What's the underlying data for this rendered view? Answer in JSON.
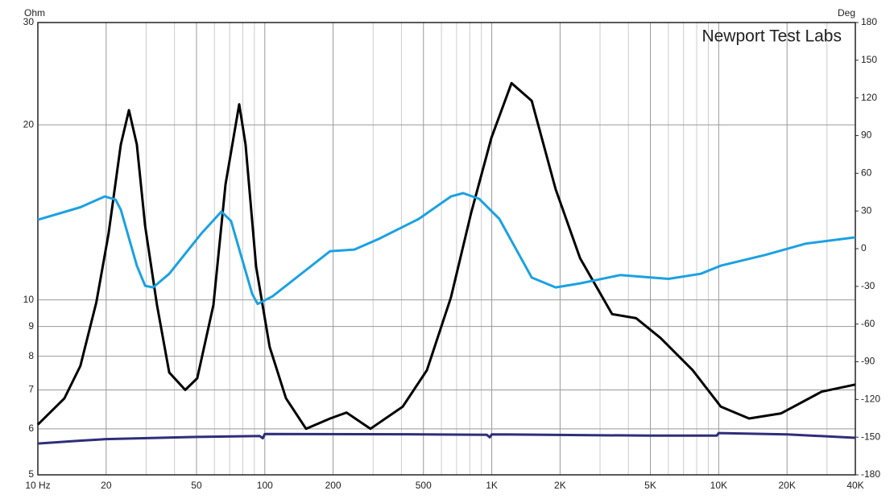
{
  "chart_data": {
    "type": "line",
    "annotation": "Newport Test Labs",
    "y_label": "Ohm",
    "y2_label": "Deg",
    "xscale": "log",
    "yscale": "log",
    "grid": true,
    "xlim": [
      10,
      40000
    ],
    "ylim": [
      5,
      30
    ],
    "y2lim": [
      -180,
      180
    ],
    "xticks": [
      {
        "value": 10,
        "label": "10 Hz"
      },
      20,
      50,
      100,
      200,
      500,
      {
        "value": 1000,
        "label": "1K"
      },
      {
        "value": 2000,
        "label": "2K"
      },
      {
        "value": 5000,
        "label": "5K"
      },
      {
        "value": 10000,
        "label": "10K"
      },
      {
        "value": 20000,
        "label": "20K"
      },
      {
        "value": 40000,
        "label": "40K"
      }
    ],
    "xminorticks": [
      30,
      40,
      60,
      70,
      80,
      90,
      300,
      400,
      600,
      700,
      800,
      900,
      3000,
      4000,
      6000,
      7000,
      8000,
      9000,
      30000
    ],
    "yticks": [
      5,
      6,
      7,
      8,
      9,
      10,
      20,
      30
    ],
    "y2ticks": [
      -180,
      -150,
      -120,
      -90,
      -60,
      -30,
      0,
      30,
      60,
      90,
      120,
      150,
      180
    ],
    "series": [
      {
        "color": "#000000",
        "axis": "y",
        "x": [
          10,
          13.1,
          15.4,
          18.1,
          20.5,
          23.2,
          25.2,
          27.3,
          29.7,
          33.5,
          37.9,
          44.6,
          50.4,
          59.4,
          67.1,
          77.1,
          82.3,
          91.6,
          105,
          124,
          152,
          194,
          229,
          292,
          405,
          518,
          661,
          811,
          996,
          1222,
          1500,
          1913,
          2450,
          3390,
          4330,
          5540,
          7680,
          10220,
          13610,
          18850,
          28410,
          40000
        ],
        "values": [
          6.1,
          6.77,
          7.7,
          9.9,
          13,
          18.5,
          21.2,
          18.5,
          13.4,
          9.8,
          7.5,
          7.0,
          7.33,
          9.8,
          15.8,
          21.7,
          18.5,
          11.4,
          8.3,
          6.77,
          6.0,
          6.25,
          6.4,
          6.0,
          6.55,
          7.57,
          10.1,
          14.1,
          19.0,
          23.6,
          22,
          15.5,
          11.8,
          9.45,
          9.3,
          8.6,
          7.57,
          6.55,
          6.25,
          6.38,
          6.95,
          7.15
        ]
      },
      {
        "color": "#1ba1e2",
        "axis": "y2",
        "x": [
          10,
          15.4,
          19.7,
          22,
          23.2,
          27.3,
          29.7,
          32.2,
          37.9,
          52.5,
          64.4,
          71,
          88,
          93,
          108,
          152,
          194,
          248,
          317,
          477,
          661,
          748,
          880,
          1080,
          1500,
          1913,
          2450,
          3680,
          6010,
          8330,
          10220,
          16020,
          24130,
          40000
        ],
        "values": [
          23,
          33,
          41.6,
          39,
          31,
          -13.5,
          -29.5,
          -30.8,
          -20,
          12,
          29.5,
          22,
          -36,
          -44,
          -38,
          -17,
          -2,
          -0.7,
          7.7,
          23.7,
          41.6,
          44.2,
          39.7,
          23.7,
          -23,
          -30.8,
          -27.6,
          -21,
          -24,
          -20,
          -13.5,
          -5,
          4,
          9
        ]
      },
      {
        "color": "#2e2e7a",
        "axis": "y",
        "x": [
          10,
          15,
          20,
          50,
          95,
          98,
          100,
          500,
          950,
          980,
          1000,
          5000,
          9800,
          10000,
          20000,
          40000
        ],
        "values": [
          5.66,
          5.72,
          5.76,
          5.81,
          5.83,
          5.78,
          5.88,
          5.87,
          5.86,
          5.8,
          5.87,
          5.84,
          5.84,
          5.9,
          5.87,
          5.79
        ]
      }
    ]
  }
}
